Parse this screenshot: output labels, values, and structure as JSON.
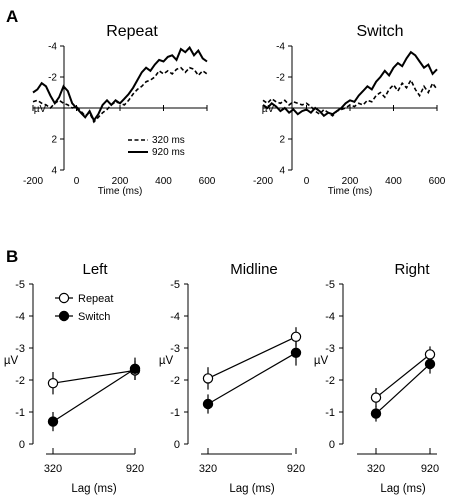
{
  "panels": {
    "a": "A",
    "b": "B"
  },
  "chart_data": [
    {
      "type": "line",
      "title": "Repeat",
      "xlabel": "Time (ms)",
      "ylabel": "µV",
      "xlim": [
        -200,
        600
      ],
      "ylim": [
        -4,
        4
      ],
      "y_inverted": true,
      "x_ticks": [
        "-200",
        "0",
        "200",
        "400",
        "600"
      ],
      "y_ticks": [
        "-4",
        "-2",
        "2",
        "4"
      ],
      "legend": {
        "placement": "bottom-right",
        "entries": [
          "320 ms",
          "920 ms"
        ]
      },
      "series": [
        {
          "name": "320 ms",
          "style": "dashed",
          "x": [
            -200,
            -180,
            -160,
            -140,
            -120,
            -100,
            -80,
            -60,
            -40,
            -20,
            0,
            20,
            40,
            60,
            80,
            100,
            120,
            140,
            160,
            180,
            200,
            220,
            240,
            260,
            280,
            300,
            320,
            340,
            360,
            380,
            400,
            420,
            440,
            460,
            480,
            500,
            520,
            540,
            560,
            580,
            600
          ],
          "y": [
            -0.4,
            -0.5,
            -0.3,
            -0.2,
            0.0,
            -0.3,
            -0.5,
            -0.3,
            -0.2,
            0.0,
            -0.1,
            0.2,
            0.5,
            0.3,
            0.9,
            0.6,
            0.3,
            0.1,
            -0.2,
            -0.4,
            -0.3,
            -0.2,
            -0.5,
            -0.9,
            -1.2,
            -1.4,
            -1.7,
            -1.8,
            -2.0,
            -2.4,
            -2.2,
            -2.4,
            -2.2,
            -2.5,
            -2.6,
            -2.3,
            -2.6,
            -2.5,
            -2.1,
            -2.4,
            -2.2
          ]
        },
        {
          "name": "920 ms",
          "style": "solid",
          "x": [
            -200,
            -180,
            -160,
            -140,
            -120,
            -100,
            -80,
            -60,
            -40,
            -20,
            0,
            20,
            40,
            60,
            80,
            100,
            120,
            140,
            160,
            180,
            200,
            220,
            240,
            260,
            280,
            300,
            320,
            340,
            360,
            380,
            400,
            420,
            440,
            460,
            480,
            500,
            520,
            540,
            560,
            580,
            600
          ],
          "y": [
            -1.0,
            -1.2,
            -1.6,
            -1.4,
            -0.8,
            -0.3,
            -0.7,
            -1.4,
            -1.1,
            -0.3,
            0.0,
            0.3,
            0.6,
            0.2,
            0.8,
            0.4,
            -0.2,
            -0.5,
            -0.2,
            -0.5,
            -0.3,
            -0.6,
            -0.9,
            -1.3,
            -1.8,
            -2.3,
            -2.6,
            -2.4,
            -2.8,
            -3.1,
            -3.0,
            -3.3,
            -3.4,
            -3.1,
            -3.8,
            -3.6,
            -3.9,
            -3.4,
            -3.7,
            -3.2,
            -3.0
          ]
        }
      ]
    },
    {
      "type": "line",
      "title": "Switch",
      "xlabel": "Time (ms)",
      "ylabel": "µV",
      "xlim": [
        -200,
        600
      ],
      "ylim": [
        -4,
        4
      ],
      "y_inverted": true,
      "x_ticks": [
        "-200",
        "0",
        "200",
        "400",
        "600"
      ],
      "y_ticks": [
        "-4",
        "-2",
        "2",
        "4"
      ],
      "series": [
        {
          "name": "320 ms",
          "style": "dashed",
          "x": [
            -200,
            -180,
            -160,
            -140,
            -120,
            -100,
            -80,
            -60,
            -40,
            -20,
            0,
            20,
            40,
            60,
            80,
            100,
            120,
            140,
            160,
            180,
            200,
            220,
            240,
            260,
            280,
            300,
            320,
            340,
            360,
            380,
            400,
            420,
            440,
            460,
            480,
            500,
            520,
            540,
            560,
            580,
            600
          ],
          "y": [
            -0.5,
            -0.3,
            -0.6,
            -0.4,
            -0.3,
            -0.5,
            -0.2,
            -0.4,
            -0.3,
            -0.2,
            -0.3,
            -0.1,
            0.2,
            0.4,
            0.1,
            0.3,
            0.5,
            0.2,
            0.1,
            0.0,
            -0.2,
            -0.1,
            -0.3,
            -0.2,
            -0.5,
            -0.4,
            -0.8,
            -1.0,
            -0.7,
            -1.2,
            -1.5,
            -1.1,
            -1.6,
            -1.3,
            -1.8,
            -1.2,
            -0.8,
            -1.4,
            -1.0,
            -1.6,
            -1.2
          ]
        },
        {
          "name": "920 ms",
          "style": "solid",
          "x": [
            -200,
            -180,
            -160,
            -140,
            -120,
            -100,
            -80,
            -60,
            -40,
            -20,
            0,
            20,
            40,
            60,
            80,
            100,
            120,
            140,
            160,
            180,
            200,
            220,
            240,
            260,
            280,
            300,
            320,
            340,
            360,
            380,
            400,
            420,
            440,
            460,
            480,
            500,
            520,
            540,
            560,
            580,
            600
          ],
          "y": [
            -0.2,
            0.0,
            -0.3,
            -0.1,
            0.2,
            0.0,
            0.3,
            0.1,
            0.4,
            0.2,
            0.1,
            0.3,
            0.0,
            0.2,
            0.5,
            0.3,
            0.4,
            0.2,
            0.0,
            -0.3,
            -0.5,
            -0.4,
            -0.8,
            -1.1,
            -1.4,
            -1.2,
            -1.7,
            -2.0,
            -2.4,
            -2.1,
            -2.6,
            -2.9,
            -2.7,
            -3.2,
            -3.6,
            -3.4,
            -3.0,
            -2.6,
            -2.8,
            -2.2,
            -2.5
          ]
        }
      ]
    },
    {
      "type": "line",
      "title": "Left",
      "xlabel": "Lag (ms)",
      "ylabel": "µV",
      "categories": [
        "320",
        "920"
      ],
      "ylim": [
        0,
        -5
      ],
      "y_inverted": true,
      "y_ticks": [
        "-5",
        "-4",
        "-3",
        "-2",
        "-1",
        "0"
      ],
      "legend": {
        "placement": "top-left",
        "entries": [
          "Repeat",
          "Switch"
        ]
      },
      "series": [
        {
          "name": "Repeat",
          "marker": "open-circle",
          "values": [
            -1.9,
            -2.3
          ],
          "errors": [
            0.35,
            0.3
          ]
        },
        {
          "name": "Switch",
          "marker": "filled-circle",
          "values": [
            -0.7,
            -2.35
          ],
          "errors": [
            0.3,
            0.35
          ]
        }
      ]
    },
    {
      "type": "line",
      "title": "Midline",
      "xlabel": "Lag (ms)",
      "ylabel": "µV",
      "categories": [
        "320",
        "920"
      ],
      "ylim": [
        0,
        -5
      ],
      "y_inverted": true,
      "y_ticks": [
        "-5",
        "-4",
        "-3",
        "-2",
        "-1",
        "0"
      ],
      "series": [
        {
          "name": "Repeat",
          "marker": "open-circle",
          "values": [
            -2.05,
            -3.35
          ],
          "errors": [
            0.35,
            0.3
          ]
        },
        {
          "name": "Switch",
          "marker": "filled-circle",
          "values": [
            -1.25,
            -2.85
          ],
          "errors": [
            0.3,
            0.4
          ]
        }
      ]
    },
    {
      "type": "line",
      "title": "Right",
      "xlabel": "Lag (ms)",
      "ylabel": "µV",
      "categories": [
        "320",
        "920"
      ],
      "ylim": [
        0,
        -5
      ],
      "y_inverted": true,
      "y_ticks": [
        "-5",
        "-4",
        "-3",
        "-2",
        "-1",
        "0"
      ],
      "series": [
        {
          "name": "Repeat",
          "marker": "open-circle",
          "values": [
            -1.45,
            -2.8
          ],
          "errors": [
            0.3,
            0.25
          ]
        },
        {
          "name": "Switch",
          "marker": "filled-circle",
          "values": [
            -0.95,
            -2.5
          ],
          "errors": [
            0.25,
            0.3
          ]
        }
      ]
    }
  ]
}
